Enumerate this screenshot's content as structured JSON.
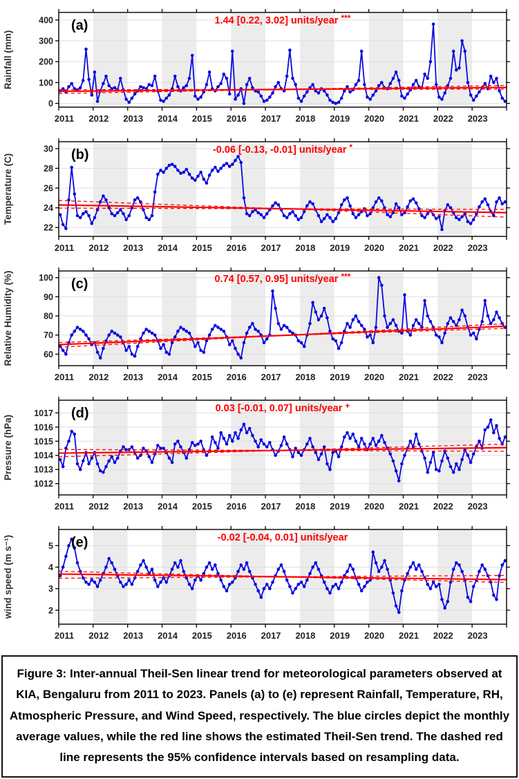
{
  "figure": {
    "caption": "Figure 3: Inter-annual Theil-Sen linear trend for meteorological parameters observed at KIA, Bengaluru from 2011 to 2023. Panels (a) to (e) represent Rainfall, Temperature, RH, Atmospheric Pressure, and Wind Speed, respectively. The blue circles depict the monthly average values, while the red line shows the estimated Theil-Sen trend. The dashed red line represents the 95% confidence intervals based on resampling data.",
    "colors": {
      "series_blue": "#0a0ae0",
      "trend_red": "#ff0000",
      "band_gray": "#ececec",
      "grid_gray": "#dedede",
      "axis_black": "#000000",
      "tick_text": "#222222"
    },
    "x_tick_labels": [
      "2011",
      "2012",
      "2013",
      "2014",
      "2015",
      "2016",
      "2017",
      "2018",
      "2019",
      "2020",
      "2021",
      "2022",
      "2023"
    ]
  },
  "chart_data": [
    {
      "type": "line",
      "id": "a",
      "panel_label": "(a)",
      "series_name": "Monthly average rainfall",
      "trend_annotation": "1.44 [0.22, 3.02] units/year",
      "significance": "***",
      "ylabel": "Rainfall  (mm)",
      "yticks": [
        0,
        100,
        200,
        300,
        400
      ],
      "ylim": [
        -18,
        436
      ],
      "x_range": [
        2011,
        2024
      ],
      "trend": {
        "slope": 1.44,
        "ci": [
          0.22,
          3.02
        ],
        "center_year": 2017.5,
        "center_value": 67
      },
      "monthly_values": [
        60,
        70,
        55,
        80,
        95,
        70,
        65,
        75,
        110,
        260,
        115,
        40,
        150,
        10,
        60,
        95,
        130,
        85,
        70,
        75,
        65,
        120,
        65,
        20,
        5,
        25,
        45,
        60,
        80,
        75,
        70,
        90,
        85,
        130,
        60,
        15,
        10,
        25,
        40,
        70,
        130,
        80,
        60,
        75,
        85,
        120,
        230,
        35,
        20,
        30,
        55,
        90,
        150,
        70,
        60,
        80,
        95,
        140,
        120,
        45,
        250,
        20,
        40,
        70,
        0,
        90,
        120,
        75,
        60,
        55,
        35,
        10,
        15,
        30,
        50,
        80,
        100,
        70,
        60,
        130,
        255,
        120,
        90,
        25,
        10,
        35,
        55,
        75,
        90,
        60,
        50,
        70,
        60,
        40,
        15,
        5,
        0,
        5,
        25,
        60,
        80,
        55,
        65,
        90,
        110,
        250,
        90,
        30,
        20,
        40,
        60,
        85,
        100,
        75,
        70,
        95,
        120,
        150,
        110,
        35,
        25,
        45,
        65,
        90,
        110,
        80,
        75,
        140,
        120,
        200,
        380,
        90,
        30,
        20,
        50,
        85,
        120,
        250,
        160,
        170,
        300,
        250,
        100,
        40,
        15,
        35,
        55,
        75,
        95,
        70,
        130,
        100,
        120,
        60,
        25,
        10
      ]
    },
    {
      "type": "line",
      "id": "b",
      "panel_label": "(b)",
      "series_name": "Monthly average temperature",
      "trend_annotation": "-0.06 [-0.13, -0.01] units/year",
      "significance": "*",
      "ylabel": "Temperature (C)",
      "yticks": [
        22,
        24,
        26,
        28,
        30
      ],
      "ylim": [
        21.1,
        30.7
      ],
      "x_range": [
        2011,
        2024
      ],
      "trend": {
        "slope": -0.06,
        "ci": [
          -0.13,
          -0.01
        ],
        "center_year": 2017.5,
        "center_value": 23.9
      },
      "monthly_values": [
        23.3,
        22.3,
        21.9,
        24.8,
        28.1,
        25.4,
        23.2,
        23.0,
        23.4,
        23.6,
        23.2,
        22.4,
        23.0,
        23.8,
        24.6,
        25.2,
        24.8,
        24.0,
        23.4,
        23.2,
        23.5,
        23.8,
        23.4,
        22.8,
        23.2,
        24.0,
        24.8,
        25.0,
        24.6,
        23.8,
        23.0,
        22.8,
        23.2,
        25.6,
        27.4,
        27.8,
        27.6,
        28.0,
        28.3,
        28.4,
        28.2,
        27.8,
        27.5,
        27.6,
        27.9,
        27.4,
        27.0,
        26.8,
        27.2,
        27.6,
        26.9,
        26.5,
        27.3,
        27.8,
        28.1,
        27.7,
        28.0,
        28.3,
        28.5,
        28.2,
        28.4,
        28.8,
        29.2,
        28.6,
        25.0,
        23.4,
        23.2,
        23.6,
        23.8,
        23.5,
        23.3,
        23.0,
        23.4,
        23.8,
        24.2,
        24.5,
        24.3,
        23.8,
        23.2,
        23.0,
        23.4,
        23.6,
        23.2,
        22.8,
        23.0,
        23.6,
        24.2,
        24.6,
        24.4,
        23.8,
        23.2,
        22.6,
        22.9,
        23.3,
        23.0,
        22.6,
        22.9,
        23.5,
        24.3,
        24.8,
        25.0,
        24.2,
        23.4,
        23.0,
        23.3,
        23.6,
        23.9,
        23.2,
        23.4,
        24.0,
        24.6,
        25.0,
        24.7,
        24.0,
        23.3,
        23.1,
        23.5,
        24.4,
        24.0,
        23.3,
        23.5,
        24.1,
        24.7,
        24.9,
        24.5,
        23.9,
        23.2,
        23.0,
        23.4,
        23.7,
        23.3,
        22.9,
        23.1,
        21.8,
        23.7,
        24.3,
        24.0,
        23.5,
        23.0,
        22.8,
        23.1,
        23.4,
        22.6,
        22.4,
        22.8,
        23.4,
        24.1,
        24.6,
        24.9,
        24.3,
        23.6,
        23.2,
        24.6,
        25.0,
        24.4,
        24.6
      ]
    },
    {
      "type": "line",
      "id": "c",
      "panel_label": "(c)",
      "series_name": "Monthly average relative humidity",
      "trend_annotation": "0.74 [0.57, 0.95] units/year",
      "significance": "***",
      "ylabel": "Relative Humidity (%)",
      "yticks": [
        60,
        70,
        80,
        90,
        100
      ],
      "ylim": [
        54,
        103.5
      ],
      "x_range": [
        2011,
        2024
      ],
      "trend": {
        "slope": 0.74,
        "ci": [
          0.57,
          0.95
        ],
        "center_year": 2017.5,
        "center_value": 69.8
      },
      "monthly_values": [
        64,
        62,
        60,
        66,
        70,
        72,
        74,
        73,
        72,
        70,
        68,
        65,
        66,
        61,
        58,
        63,
        67,
        70,
        72,
        71,
        70,
        69,
        66,
        62,
        64,
        60,
        59,
        64,
        68,
        71,
        73,
        72,
        71,
        70,
        67,
        63,
        65,
        61,
        60,
        66,
        69,
        72,
        74,
        73,
        72,
        71,
        68,
        64,
        66,
        62,
        61,
        67,
        70,
        73,
        75,
        74,
        73,
        72,
        69,
        65,
        67,
        63,
        60,
        58,
        66,
        71,
        74,
        76,
        73,
        72,
        70,
        66,
        68,
        70,
        93,
        84,
        76,
        73,
        75,
        74,
        72,
        71,
        70,
        67,
        66,
        64,
        70,
        76,
        87,
        82,
        78,
        80,
        84,
        79,
        72,
        68,
        67,
        63,
        66,
        72,
        76,
        74,
        78,
        80,
        77,
        75,
        73,
        69,
        70,
        66,
        74,
        100,
        96,
        80,
        74,
        76,
        78,
        75,
        72,
        71,
        91,
        72,
        70,
        75,
        78,
        76,
        74,
        88,
        80,
        77,
        74,
        70,
        69,
        66,
        71,
        76,
        79,
        77,
        75,
        78,
        83,
        80,
        74,
        70,
        71,
        68,
        73,
        77,
        88,
        80,
        76,
        78,
        82,
        79,
        76,
        74
      ]
    },
    {
      "type": "line",
      "id": "d",
      "panel_label": "(d)",
      "series_name": "Monthly average pressure",
      "trend_annotation": "0.03 [-0.01, 0.07] units/year",
      "significance": "+",
      "ylabel": "Pressure (hPa)",
      "yticks": [
        1012,
        1013,
        1014,
        1015,
        1016,
        1017
      ],
      "ylim": [
        1011.2,
        1017.9
      ],
      "x_range": [
        2011,
        2024
      ],
      "trend": {
        "slope": 0.03,
        "ci": [
          -0.01,
          0.07
        ],
        "center_year": 2017.5,
        "center_value": 1014.35
      },
      "monthly_values": [
        1013.7,
        1013.2,
        1014.5,
        1015.0,
        1015.7,
        1015.5,
        1013.4,
        1013.0,
        1013.6,
        1014.2,
        1013.4,
        1013.8,
        1014.2,
        1013.4,
        1012.9,
        1012.8,
        1013.2,
        1013.6,
        1013.9,
        1013.5,
        1013.8,
        1014.3,
        1014.6,
        1014.4,
        1014.4,
        1014.6,
        1014.2,
        1013.8,
        1014.0,
        1014.5,
        1014.3,
        1013.9,
        1013.5,
        1014.1,
        1014.7,
        1014.5,
        1014.5,
        1014.2,
        1013.8,
        1013.5,
        1014.8,
        1015.0,
        1014.6,
        1014.2,
        1013.8,
        1014.4,
        1014.9,
        1014.7,
        1014.8,
        1015.0,
        1014.4,
        1014.0,
        1014.3,
        1015.3,
        1014.9,
        1014.5,
        1015.6,
        1015.2,
        1014.8,
        1015.4,
        1015.0,
        1015.6,
        1015.2,
        1015.8,
        1016.2,
        1015.6,
        1015.9,
        1015.4,
        1015.0,
        1014.6,
        1015.1,
        1014.8,
        1014.6,
        1014.9,
        1014.4,
        1014.0,
        1014.3,
        1014.7,
        1015.3,
        1014.8,
        1014.4,
        1013.9,
        1014.5,
        1014.2,
        1014.0,
        1014.4,
        1014.8,
        1015.2,
        1014.6,
        1014.2,
        1013.7,
        1014.1,
        1014.6,
        1013.4,
        1013.0,
        1014.2,
        1014.3,
        1013.9,
        1014.6,
        1015.3,
        1015.6,
        1015.2,
        1015.5,
        1015.0,
        1014.6,
        1015.2,
        1014.8,
        1014.4,
        1014.8,
        1015.2,
        1014.7,
        1015.0,
        1015.4,
        1014.9,
        1014.5,
        1014.1,
        1013.6,
        1012.9,
        1012.2,
        1013.4,
        1014.0,
        1014.5,
        1015.0,
        1014.6,
        1015.5,
        1014.8,
        1014.3,
        1013.8,
        1012.8,
        1013.5,
        1014.2,
        1013.0,
        1012.9,
        1013.6,
        1014.3,
        1013.8,
        1013.2,
        1012.8,
        1013.4,
        1013.0,
        1013.7,
        1014.4,
        1014.0,
        1013.5,
        1014.1,
        1014.6,
        1015.0,
        1014.5,
        1015.8,
        1016.0,
        1016.5,
        1015.6,
        1016.1,
        1015.2,
        1014.8,
        1015.3
      ]
    },
    {
      "type": "line",
      "id": "e",
      "panel_label": "(e)",
      "series_name": "Monthly average wind speed",
      "trend_annotation": "-0.02 [-0.04, 0.01] units/year",
      "significance": "",
      "ylabel": "wind speed (m s⁻¹)",
      "yticks": [
        2,
        3,
        4,
        5
      ],
      "ylim": [
        1.35,
        5.75
      ],
      "x_range": [
        2011,
        2024
      ],
      "trend": {
        "slope": -0.02,
        "ci": [
          -0.04,
          0.01
        ],
        "center_year": 2017.5,
        "center_value": 3.55
      },
      "monthly_values": [
        3.6,
        4.0,
        4.5,
        5.0,
        5.3,
        4.9,
        4.2,
        3.8,
        3.5,
        3.3,
        3.2,
        3.4,
        3.3,
        3.1,
        3.4,
        3.7,
        4.0,
        4.4,
        4.2,
        3.9,
        3.6,
        3.3,
        3.1,
        3.2,
        3.4,
        3.2,
        3.5,
        3.8,
        4.1,
        4.3,
        4.0,
        3.7,
        3.9,
        3.4,
        3.1,
        3.3,
        3.5,
        3.3,
        3.6,
        3.9,
        4.2,
        4.0,
        4.3,
        3.8,
        3.5,
        3.2,
        3.0,
        3.4,
        3.6,
        3.4,
        3.7,
        4.0,
        4.2,
        3.9,
        4.1,
        3.7,
        3.4,
        3.1,
        2.9,
        3.2,
        3.3,
        3.5,
        3.8,
        4.1,
        3.9,
        4.2,
        3.8,
        3.5,
        3.2,
        2.9,
        2.6,
        3.0,
        3.2,
        3.0,
        3.3,
        3.6,
        3.9,
        4.1,
        3.8,
        3.4,
        3.1,
        2.8,
        3.0,
        3.2,
        3.3,
        3.1,
        3.4,
        3.7,
        4.0,
        4.2,
        3.9,
        3.6,
        3.3,
        3.0,
        2.8,
        3.1,
        3.2,
        3.0,
        3.3,
        3.6,
        3.8,
        4.1,
        3.9,
        3.5,
        3.2,
        2.9,
        3.1,
        3.3,
        3.4,
        4.7,
        4.2,
        3.8,
        4.0,
        4.3,
        3.9,
        3.4,
        2.8,
        2.2,
        1.9,
        2.9,
        3.4,
        3.7,
        4.0,
        4.2,
        3.9,
        4.1,
        3.8,
        3.5,
        3.2,
        3.0,
        3.3,
        3.1,
        3.2,
        2.5,
        2.1,
        2.4,
        3.3,
        3.9,
        4.2,
        4.1,
        3.8,
        3.4,
        2.6,
        2.4,
        3.1,
        3.4,
        3.8,
        4.1,
        3.9,
        3.6,
        3.3,
        2.7,
        2.5,
        3.6,
        4.1,
        4.3
      ]
    }
  ]
}
